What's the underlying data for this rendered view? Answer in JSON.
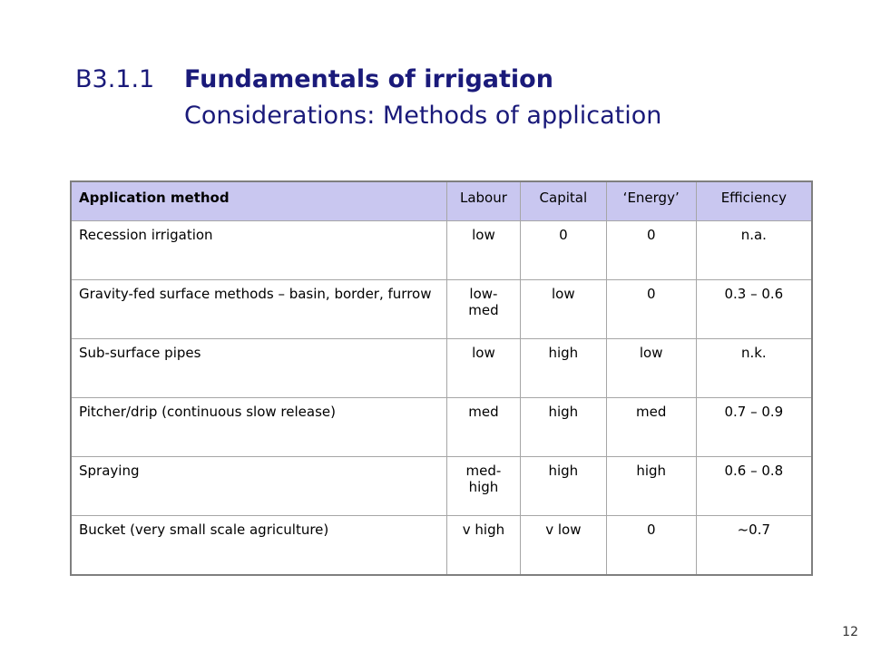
{
  "slide": {
    "code": "B3.1.1",
    "title": "Fundamentals of irrigation",
    "subtitle": "Considerations: Methods of application",
    "page_number": "12"
  },
  "table": {
    "headers": [
      "Application method",
      "Labour",
      "Capital",
      "‘Energy’",
      "Efficiency"
    ],
    "rows": [
      [
        "Recession irrigation",
        "low",
        "0",
        "0",
        "n.a."
      ],
      [
        "Gravity-fed surface methods – basin, border, furrow",
        "low-med",
        "low",
        "0",
        "0.3 – 0.6"
      ],
      [
        "Sub-surface pipes",
        "low",
        "high",
        "low",
        "n.k."
      ],
      [
        "Pitcher/drip (continuous slow release)",
        "med",
        "high",
        "med",
        "0.7 – 0.9"
      ],
      [
        "Spraying",
        "med-high",
        "high",
        "high",
        "0.6 – 0.8"
      ],
      [
        "Bucket (very small scale agriculture)",
        "v high",
        "v low",
        "0",
        "~0.7"
      ]
    ]
  },
  "colors": {
    "title": "#1a1a7a",
    "header_background": "#c9c7f0",
    "border": "#7f7f7f"
  }
}
